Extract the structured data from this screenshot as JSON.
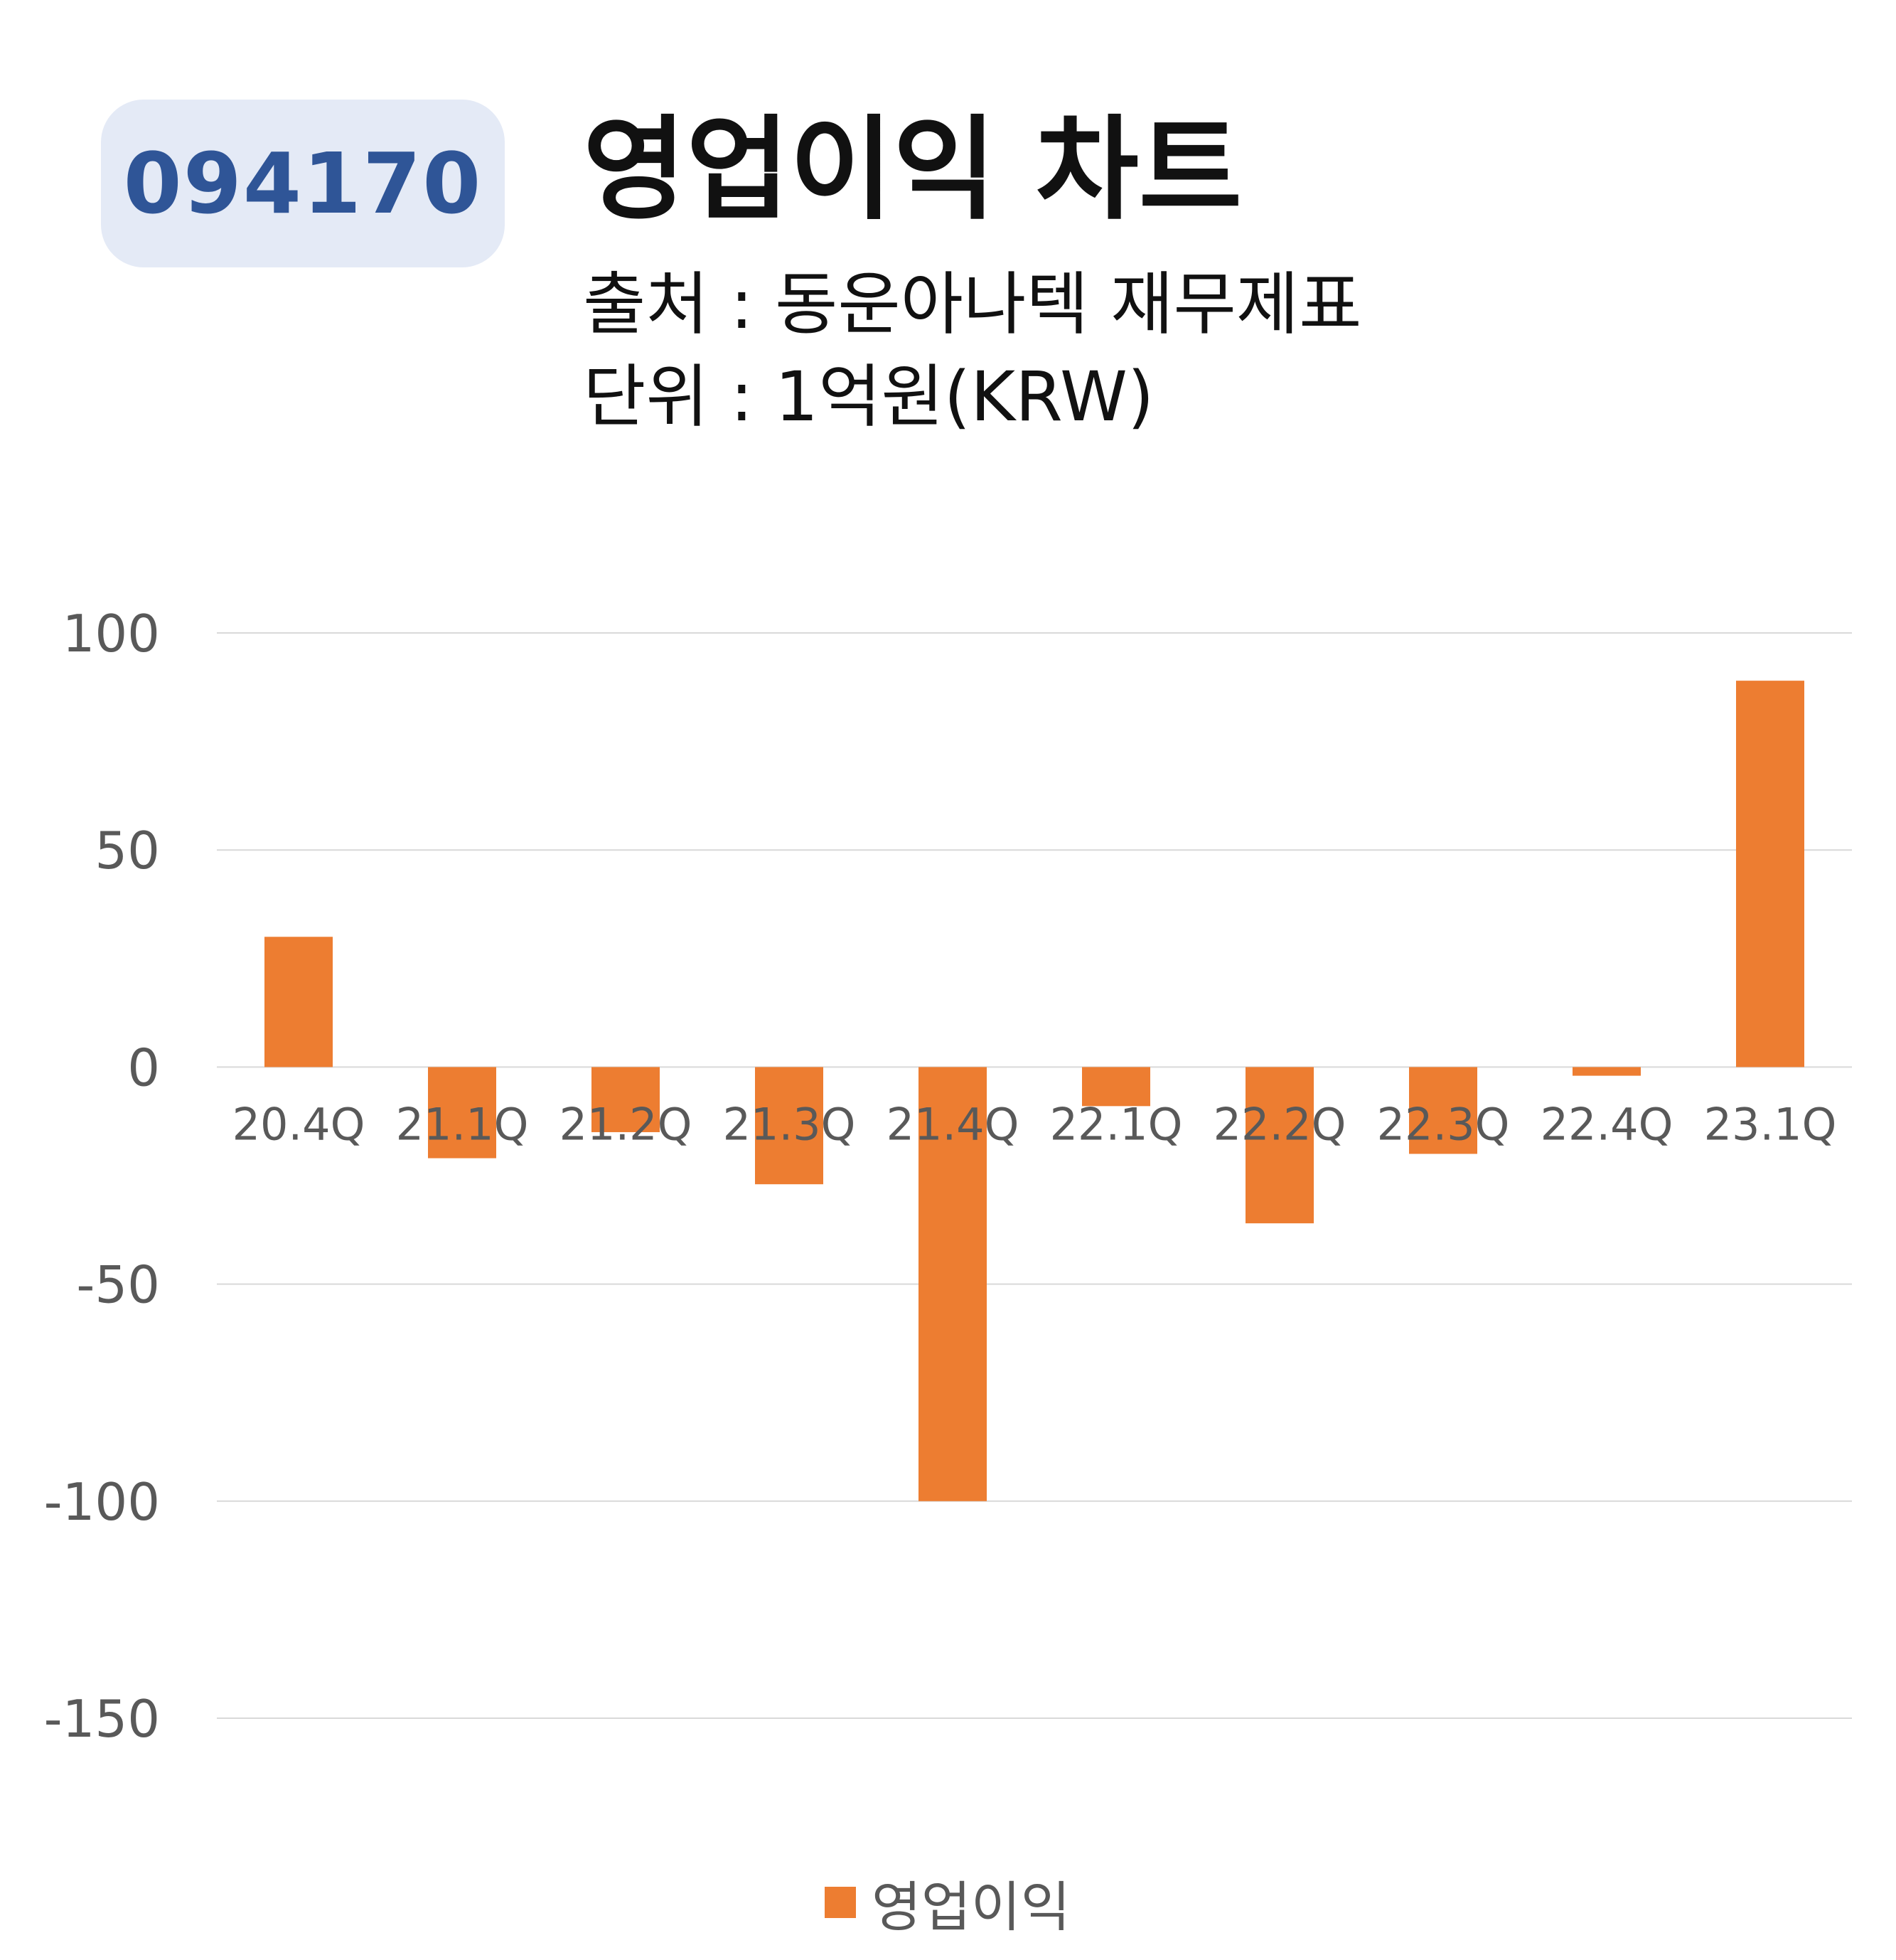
{
  "header": {
    "ticker": "094170",
    "title": "영업이익 차트",
    "source_line": "출처 : 동운아나텍 재무제표",
    "unit_line": "단위 : 1억원(KRW)"
  },
  "colors": {
    "bar": "#ed7d31",
    "gridline": "#d9d9d9",
    "tick_text": "#595959",
    "badge_bg": "#e4eaf6",
    "badge_text": "#2f5597"
  },
  "chart_data": {
    "type": "bar",
    "title": "",
    "xlabel": "",
    "ylabel": "",
    "ylim": [
      -150,
      100
    ],
    "yticks": [
      100,
      50,
      0,
      -50,
      -100,
      -150
    ],
    "grid": true,
    "legend_position": "bottom",
    "categories": [
      "20.4Q",
      "21.1Q",
      "21.2Q",
      "21.3Q",
      "21.4Q",
      "22.1Q",
      "22.2Q",
      "22.3Q",
      "22.4Q",
      "23.1Q"
    ],
    "series": [
      {
        "name": "영업이익",
        "values": [
          30,
          -21,
          -15,
          -27,
          -100,
          -9,
          -36,
          -20,
          -2,
          89
        ]
      }
    ]
  }
}
